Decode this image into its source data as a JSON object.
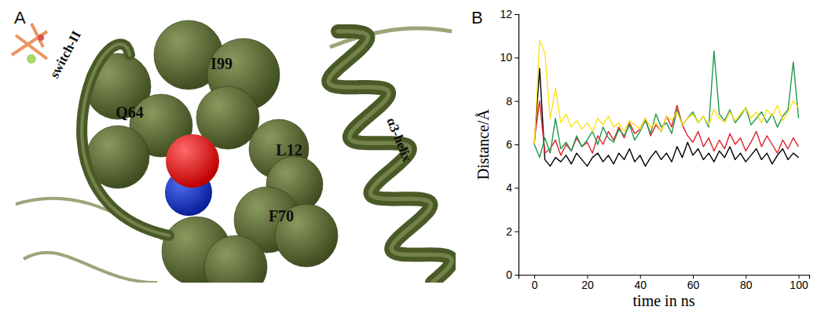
{
  "chart_data": [
    {
      "type": "diagram",
      "title": "A",
      "annotations": [
        "switch-II",
        "Q64",
        "I99",
        "L12",
        "F70",
        "α3-helix"
      ]
    },
    {
      "type": "line",
      "title": "B",
      "x_label": "time in ns",
      "y_label": "Distance/Å",
      "xlim": [
        -6,
        104
      ],
      "xticks": [
        0,
        20,
        40,
        60,
        80,
        100
      ],
      "ylim": [
        0,
        12
      ],
      "yticks": [
        0,
        2,
        4,
        6,
        8,
        10,
        12
      ],
      "x": [
        0,
        2,
        4,
        6,
        8,
        10,
        12,
        14,
        16,
        18,
        20,
        22,
        24,
        26,
        28,
        30,
        32,
        34,
        36,
        38,
        40,
        42,
        44,
        46,
        48,
        50,
        52,
        54,
        56,
        58,
        60,
        62,
        64,
        66,
        68,
        70,
        72,
        74,
        76,
        78,
        80,
        82,
        84,
        86,
        88,
        90,
        92,
        94,
        96,
        98,
        100
      ],
      "series": [
        {
          "color": "#000000",
          "values": [
            6.0,
            9.5,
            5.3,
            5.0,
            5.4,
            5.2,
            5.5,
            5.1,
            5.6,
            5.3,
            5.0,
            5.4,
            5.6,
            5.2,
            5.5,
            5.1,
            5.6,
            5.3,
            5.8,
            5.2,
            5.5,
            5.0,
            5.4,
            5.7,
            5.3,
            5.6,
            5.2,
            5.9,
            5.4,
            6.1,
            5.5,
            5.8,
            5.3,
            5.6,
            5.2,
            5.7,
            5.4,
            5.9,
            5.3,
            5.6,
            5.2,
            5.5,
            5.8,
            5.3,
            5.6,
            5.1,
            5.5,
            5.8,
            5.3,
            5.6,
            5.4
          ]
        },
        {
          "color": "#e0202a",
          "values": [
            6.2,
            8.0,
            5.6,
            5.8,
            6.2,
            5.5,
            6.0,
            5.7,
            6.3,
            5.9,
            6.1,
            5.6,
            6.4,
            6.0,
            6.6,
            6.2,
            6.8,
            6.3,
            7.0,
            6.5,
            6.7,
            7.2,
            6.4,
            6.9,
            6.6,
            7.3,
            6.8,
            7.8,
            6.9,
            6.4,
            6.1,
            6.6,
            5.9,
            6.3,
            5.7,
            6.2,
            5.8,
            6.5,
            6.0,
            6.3,
            5.7,
            6.1,
            6.6,
            5.9,
            6.4,
            6.0,
            5.6,
            6.2,
            5.8,
            6.3,
            5.9
          ]
        },
        {
          "color": "#1f9a4a",
          "values": [
            6.0,
            5.4,
            6.3,
            5.6,
            7.2,
            5.8,
            6.1,
            5.7,
            6.4,
            5.9,
            6.2,
            6.6,
            6.0,
            6.8,
            6.3,
            6.1,
            6.7,
            6.4,
            6.9,
            6.2,
            6.6,
            7.1,
            6.5,
            7.4,
            6.8,
            7.0,
            6.5,
            7.6,
            6.9,
            7.2,
            7.5,
            7.0,
            7.3,
            6.8,
            10.3,
            7.4,
            7.1,
            7.6,
            7.0,
            7.3,
            7.7,
            6.9,
            7.2,
            7.5,
            7.0,
            7.4,
            6.8,
            7.3,
            7.6,
            9.8,
            7.2
          ]
        },
        {
          "color": "#ffe21a",
          "values": [
            6.0,
            10.8,
            10.2,
            7.2,
            8.6,
            7.0,
            7.4,
            6.8,
            7.1,
            6.7,
            7.0,
            6.6,
            7.2,
            6.9,
            7.3,
            6.8,
            7.0,
            6.6,
            7.1,
            6.9,
            6.7,
            7.2,
            6.8,
            7.0,
            6.6,
            7.3,
            7.1,
            7.5,
            6.9,
            7.2,
            7.4,
            7.0,
            7.3,
            6.9,
            7.6,
            7.2,
            7.0,
            7.5,
            7.1,
            7.4,
            7.7,
            7.2,
            7.5,
            7.0,
            7.6,
            7.3,
            7.8,
            7.1,
            7.5,
            8.0,
            7.7
          ]
        }
      ]
    }
  ]
}
